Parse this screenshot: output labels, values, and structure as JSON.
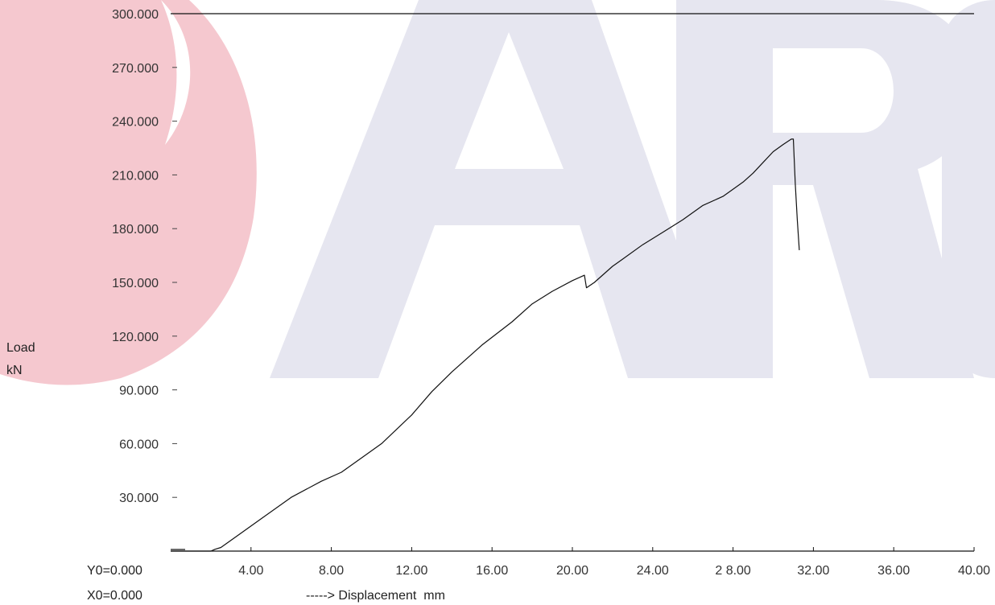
{
  "chart_data": {
    "type": "line",
    "title": "",
    "ylabel_line1": "Load",
    "ylabel_line2": "kN",
    "xlabel": "-----> Displacement  mm",
    "y0_label": "Y0=0.000",
    "x0_label": "X0=0.000",
    "xlim": [
      0,
      40
    ],
    "ylim": [
      0,
      300
    ],
    "x_ticks": [
      4,
      8,
      12,
      16,
      20,
      24,
      28,
      32,
      36,
      40
    ],
    "x_tick_labels": [
      "4.00",
      "8.00",
      "12.00",
      "16.00",
      "20.00",
      "24.00",
      "2 8.00",
      "32.00",
      "36.00",
      "40.00"
    ],
    "y_ticks": [
      30,
      60,
      90,
      120,
      150,
      180,
      210,
      240,
      270,
      300
    ],
    "y_tick_labels": [
      "30.000",
      "60.000",
      "90.000",
      "120.000",
      "150.000",
      "180.000",
      "210.000",
      "240.000",
      "270.000",
      "300.000"
    ],
    "grid": false,
    "series": [
      {
        "x": [
          0.0,
          1.0,
          2.0,
          2.1,
          2.2,
          2.5,
          3.5,
          4.5,
          6.0,
          7.5,
          8.5,
          9.5,
          10.5,
          12.0,
          13.0,
          14.0,
          15.5,
          17.0,
          18.0,
          19.0,
          20.0,
          20.6,
          20.7,
          21.1,
          22.0,
          22.5,
          23.5,
          24.5,
          25.5,
          26.5,
          27.5,
          28.5,
          29.0,
          29.5,
          30.0,
          30.5,
          30.9,
          31.0,
          31.1,
          31.2,
          31.3
        ],
        "y": [
          0.0,
          0.0,
          0.0,
          0.5,
          1.0,
          2.0,
          10.0,
          18.0,
          30.0,
          39.0,
          44.0,
          52.0,
          60.0,
          76.0,
          89.0,
          100.0,
          115.0,
          128.0,
          138.0,
          145.0,
          151.0,
          154.0,
          147.0,
          150.0,
          159.0,
          163.0,
          171.0,
          178.0,
          185.0,
          193.0,
          198.0,
          206.0,
          211.0,
          217.0,
          223.0,
          227.0,
          230.0,
          230.0,
          205.0,
          185.0,
          168.0
        ],
        "color": "#111111"
      }
    ]
  }
}
